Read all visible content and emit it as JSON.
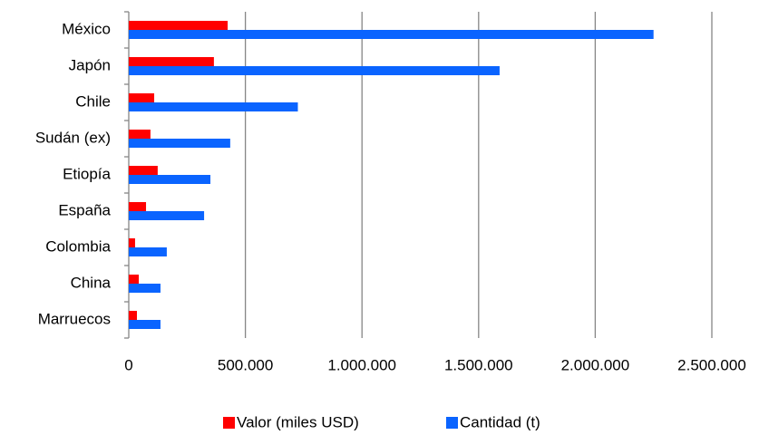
{
  "chart_data": {
    "type": "barh",
    "categories": [
      "México",
      "Japón",
      "Chile",
      "Sudán (ex)",
      "Etiopía",
      "España",
      "Colombia",
      "China",
      "Marruecos"
    ],
    "series": [
      {
        "name": "Valor (miles USD)",
        "color": "#ff0000",
        "values": [
          424000,
          365000,
          109000,
          93000,
          124000,
          74000,
          27000,
          43000,
          35000
        ]
      },
      {
        "name": "Cantidad (t)",
        "color": "#0a64ff",
        "values": [
          2250000,
          1590000,
          725000,
          435000,
          350000,
          323000,
          163000,
          136000,
          136000
        ]
      }
    ],
    "xlim": [
      0,
      2500000
    ],
    "xticks": [
      0,
      {
        "value": 500000,
        "label": "500.000"
      },
      {
        "value": 1000000,
        "label": "1.000.000"
      },
      {
        "value": 1500000,
        "label": "1.500.000"
      },
      {
        "value": 2000000,
        "label": "2.000.000"
      },
      {
        "value": 2500000,
        "label": "2.500.000"
      }
    ],
    "grid": true,
    "legend": "bottom"
  }
}
